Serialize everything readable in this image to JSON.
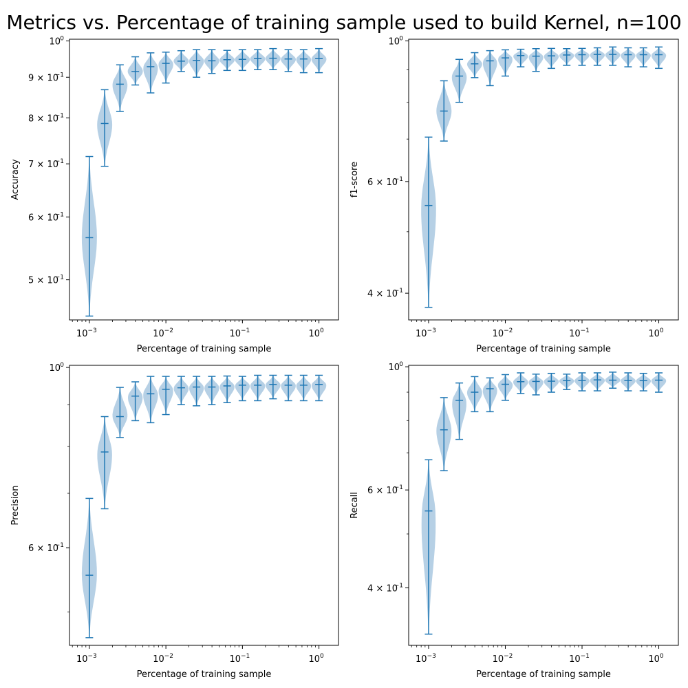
{
  "title": "Metrics vs. Percentage of training sample used to build Kernel, n=100",
  "x_positions": [
    0.001,
    0.001585,
    0.002512,
    0.003981,
    0.00631,
    0.01,
    0.01585,
    0.02512,
    0.03981,
    0.0631,
    0.1,
    0.1585,
    0.2512,
    0.3981,
    0.631,
    1.0
  ],
  "colors": {
    "violin_fill": "#a9c8e1",
    "violin_line": "#1f77b4"
  },
  "chart_data": [
    {
      "type": "violin",
      "ylabel": "Accuracy",
      "xlabel": "Percentage of training sample",
      "xscale": "log",
      "yscale": "log",
      "xlim": [
        0.00055,
        1.8
      ],
      "ylim": [
        0.445,
        1.005
      ],
      "x_tick_labels": [
        "10",
        "10",
        "10",
        "10"
      ],
      "x_tick_sups": [
        "−3",
        "−2",
        "−1",
        "0"
      ],
      "y_tick_labels": [
        "5 × 10",
        "6 × 10",
        "7 × 10",
        "8 × 10",
        "9 × 10",
        "10"
      ],
      "y_tick_sups": [
        "−1",
        "−1",
        "−1",
        "−1",
        "−1",
        "0"
      ],
      "min": [
        0.45,
        0.695,
        0.815,
        0.88,
        0.86,
        0.885,
        0.915,
        0.9,
        0.91,
        0.918,
        0.918,
        0.92,
        0.92,
        0.915,
        0.912,
        0.912
      ],
      "max": [
        0.715,
        0.868,
        0.933,
        0.955,
        0.966,
        0.968,
        0.972,
        0.975,
        0.975,
        0.973,
        0.975,
        0.975,
        0.978,
        0.975,
        0.975,
        0.978
      ],
      "mean": [
        0.565,
        0.787,
        0.882,
        0.915,
        0.928,
        0.937,
        0.943,
        0.945,
        0.944,
        0.947,
        0.948,
        0.95,
        0.951,
        0.949,
        0.949,
        0.95
      ]
    },
    {
      "type": "violin",
      "ylabel": "f1-score",
      "xlabel": "Percentage of training sample",
      "xscale": "log",
      "yscale": "log",
      "xlim": [
        0.00055,
        1.8
      ],
      "ylim": [
        0.363,
        1.006
      ],
      "x_tick_labels": [
        "10",
        "10",
        "10",
        "10"
      ],
      "x_tick_sups": [
        "−3",
        "−2",
        "−1",
        "0"
      ],
      "y_tick_labels": [
        "4 × 10",
        "6 × 10",
        "10"
      ],
      "y_tick_sups": [
        "−1",
        "−1",
        "0"
      ],
      "min": [
        0.38,
        0.695,
        0.8,
        0.875,
        0.85,
        0.88,
        0.91,
        0.895,
        0.905,
        0.915,
        0.915,
        0.915,
        0.915,
        0.91,
        0.91,
        0.905
      ],
      "max": [
        0.705,
        0.865,
        0.935,
        0.958,
        0.965,
        0.968,
        0.97,
        0.972,
        0.973,
        0.972,
        0.973,
        0.975,
        0.978,
        0.975,
        0.975,
        0.978
      ],
      "mean": [
        0.55,
        0.775,
        0.88,
        0.92,
        0.93,
        0.94,
        0.948,
        0.946,
        0.947,
        0.95,
        0.951,
        0.952,
        0.952,
        0.951,
        0.951,
        0.951
      ]
    },
    {
      "type": "violin",
      "ylabel": "Precision",
      "xlabel": "Percentage of training sample",
      "xscale": "log",
      "yscale": "log",
      "xlim": [
        0.00055,
        1.8
      ],
      "ylim": [
        0.455,
        1.006
      ],
      "x_tick_labels": [
        "10",
        "10",
        "10",
        "10"
      ],
      "x_tick_sups": [
        "−3",
        "−2",
        "−1",
        "0"
      ],
      "y_tick_labels": [
        "6 × 10",
        "10"
      ],
      "y_tick_sups": [
        "−1",
        "0"
      ],
      "min": [
        0.465,
        0.67,
        0.82,
        0.86,
        0.855,
        0.875,
        0.9,
        0.897,
        0.9,
        0.905,
        0.91,
        0.91,
        0.915,
        0.91,
        0.91,
        0.91
      ],
      "max": [
        0.69,
        0.87,
        0.945,
        0.96,
        0.975,
        0.975,
        0.975,
        0.975,
        0.975,
        0.976,
        0.975,
        0.978,
        0.978,
        0.978,
        0.978,
        0.978
      ],
      "mean": [
        0.555,
        0.787,
        0.87,
        0.922,
        0.928,
        0.94,
        0.944,
        0.946,
        0.946,
        0.949,
        0.951,
        0.951,
        0.953,
        0.951,
        0.951,
        0.953
      ]
    },
    {
      "type": "violin",
      "ylabel": "Recall",
      "xlabel": "Percentage of training sample",
      "xscale": "log",
      "yscale": "log",
      "xlim": [
        0.00055,
        1.8
      ],
      "ylim": [
        0.315,
        1.006
      ],
      "x_tick_labels": [
        "10",
        "10",
        "10",
        "10"
      ],
      "x_tick_sups": [
        "−3",
        "−2",
        "−1",
        "0"
      ],
      "y_tick_labels": [
        "4 × 10",
        "6 × 10",
        "10"
      ],
      "y_tick_sups": [
        "−1",
        "−1",
        "0"
      ],
      "min": [
        0.33,
        0.65,
        0.74,
        0.83,
        0.83,
        0.87,
        0.895,
        0.89,
        0.9,
        0.91,
        0.905,
        0.905,
        0.915,
        0.905,
        0.905,
        0.9
      ],
      "max": [
        0.68,
        0.88,
        0.935,
        0.96,
        0.955,
        0.968,
        0.975,
        0.97,
        0.973,
        0.97,
        0.975,
        0.975,
        0.978,
        0.975,
        0.973,
        0.975
      ],
      "mean": [
        0.55,
        0.77,
        0.87,
        0.9,
        0.913,
        0.93,
        0.94,
        0.941,
        0.942,
        0.944,
        0.945,
        0.947,
        0.946,
        0.945,
        0.944,
        0.946
      ]
    }
  ]
}
